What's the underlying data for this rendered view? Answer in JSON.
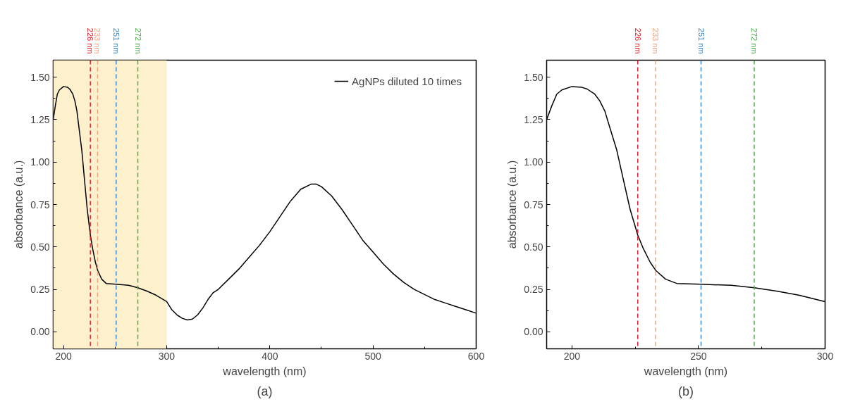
{
  "chart_data": [
    {
      "type": "line",
      "xlabel": "wavelength (nm)",
      "ylabel": "absorbance (a.u.)",
      "annotations": [
        "(a)"
      ],
      "legend": "top right",
      "grid": false,
      "line_style": "solid",
      "x": [
        190,
        192,
        194,
        196,
        200,
        204,
        206,
        209,
        211,
        213,
        214.2,
        217.7,
        220.4,
        223,
        226,
        228.2,
        230.9,
        233.2,
        237,
        241.4,
        251,
        263,
        272,
        280.8,
        289.6,
        300,
        305,
        310,
        315,
        320,
        325,
        330,
        335,
        340,
        345,
        350,
        360,
        370,
        380,
        390,
        400,
        410,
        420,
        430,
        440,
        445,
        450,
        460,
        470,
        480,
        490,
        500,
        510,
        520,
        530,
        540,
        550,
        560,
        570,
        580,
        590,
        600
      ],
      "series": [
        {
          "name": "AgNPs diluted 10 times",
          "color": "#000000",
          "values": [
            1.25,
            1.33,
            1.4,
            1.425,
            1.445,
            1.44,
            1.43,
            1.4,
            1.36,
            1.3,
            1.24,
            1.07,
            0.89,
            0.72,
            0.57,
            0.49,
            0.41,
            0.36,
            0.31,
            0.285,
            0.28,
            0.274,
            0.26,
            0.24,
            0.216,
            0.178,
            0.13,
            0.1,
            0.08,
            0.07,
            0.075,
            0.1,
            0.14,
            0.19,
            0.23,
            0.25,
            0.31,
            0.37,
            0.44,
            0.51,
            0.59,
            0.68,
            0.77,
            0.84,
            0.87,
            0.87,
            0.855,
            0.8,
            0.72,
            0.63,
            0.54,
            0.47,
            0.4,
            0.34,
            0.29,
            0.25,
            0.22,
            0.19,
            0.17,
            0.15,
            0.13,
            0.11
          ]
        }
      ],
      "xlim": [
        190,
        600
      ],
      "ylim": [
        -0.1,
        1.6
      ],
      "xticks": [
        200,
        300,
        400,
        500,
        600
      ],
      "yticks": [
        {
          "value": 0,
          "label": "0.00"
        },
        {
          "value": 0.25,
          "label": "0.25"
        },
        {
          "value": 0.5,
          "label": "0.50"
        },
        {
          "value": 0.75,
          "label": "0.75"
        },
        {
          "value": 1,
          "label": "1.00"
        },
        {
          "value": 1.25,
          "label": "1.25"
        },
        {
          "value": 1.5,
          "label": "1.50"
        }
      ],
      "bands": [
        {
          "axis": "x",
          "from": 190,
          "to": 300,
          "color": "#fdf0cc"
        }
      ],
      "ref_lines": [
        {
          "axis": "x",
          "value": 226,
          "label": "226 nm",
          "color": "#e8202a",
          "line_style": "dashed"
        },
        {
          "axis": "x",
          "value": 233,
          "label": "233 nm",
          "color": "#f4a582",
          "line_style": "dashed"
        },
        {
          "axis": "x",
          "value": 251,
          "label": "251 nm",
          "color": "#3a87c8",
          "line_style": "dashed"
        },
        {
          "axis": "x",
          "value": 272,
          "label": "272 nm",
          "color": "#4daf4a",
          "line_style": "dashed"
        }
      ]
    },
    {
      "type": "line",
      "xlabel": "wavelength (nm)",
      "ylabel": "absorbance (a.u.)",
      "annotations": [
        "(b)"
      ],
      "grid": false,
      "line_style": "solid",
      "x": [
        190,
        192,
        194,
        196,
        200,
        204,
        206,
        209,
        211,
        213,
        214.2,
        217.7,
        220.4,
        223,
        226,
        228.2,
        230.9,
        233.2,
        237,
        241.4,
        251,
        263,
        272,
        280.8,
        289.6,
        300
      ],
      "series": [
        {
          "color": "#000000",
          "values": [
            1.25,
            1.33,
            1.4,
            1.425,
            1.445,
            1.44,
            1.43,
            1.4,
            1.36,
            1.3,
            1.24,
            1.07,
            0.89,
            0.72,
            0.57,
            0.49,
            0.41,
            0.36,
            0.31,
            0.285,
            0.28,
            0.274,
            0.26,
            0.24,
            0.216,
            0.178
          ]
        }
      ],
      "xlim": [
        190,
        300
      ],
      "ylim": [
        -0.1,
        1.6
      ],
      "xticks": [
        200,
        250,
        300
      ],
      "yticks": [
        {
          "value": 0,
          "label": "0.00"
        },
        {
          "value": 0.25,
          "label": "0.25"
        },
        {
          "value": 0.5,
          "label": "0.50"
        },
        {
          "value": 0.75,
          "label": "0.75"
        },
        {
          "value": 1,
          "label": "1.00"
        },
        {
          "value": 1.25,
          "label": "1.25"
        },
        {
          "value": 1.5,
          "label": "1.50"
        }
      ],
      "ref_lines": [
        {
          "axis": "x",
          "value": 226,
          "label": "226 nm",
          "color": "#e8202a",
          "line_style": "dashed"
        },
        {
          "axis": "x",
          "value": 233,
          "label": "233 nm",
          "color": "#f4a582",
          "line_style": "dashed"
        },
        {
          "axis": "x",
          "value": 251,
          "label": "251 nm",
          "color": "#3a87c8",
          "line_style": "dashed"
        },
        {
          "axis": "x",
          "value": 272,
          "label": "272 nm",
          "color": "#4daf4a",
          "line_style": "dashed"
        }
      ]
    }
  ]
}
